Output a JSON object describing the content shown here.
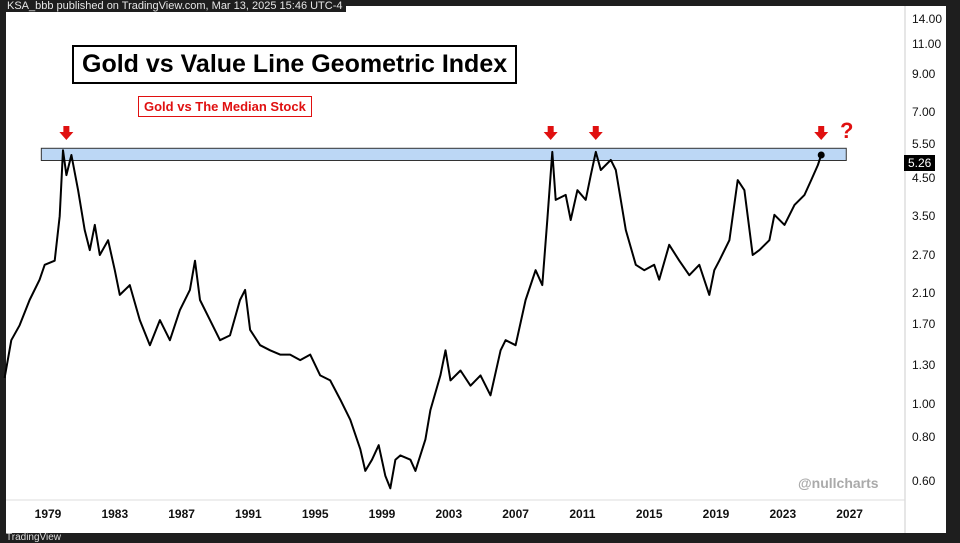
{
  "header": "KSA_bbb published on TradingView.com, Mar 13, 2025 15:46 UTC-4",
  "footer": "TradingView",
  "watermark": "@nullcharts",
  "annotation_question": "?",
  "chart_data": {
    "type": "line",
    "title": "Gold vs Value Line Geometric Index",
    "subtitle": "Gold vs The Median Stock",
    "scale": "log",
    "ylim": [
      0.57,
      14.5
    ],
    "xlim": [
      1976.3,
      2031.5
    ],
    "y_ticks": [
      "14.00",
      "11.00",
      "9.00",
      "7.00",
      "5.50",
      "4.50",
      "3.50",
      "2.70",
      "2.10",
      "1.70",
      "1.30",
      "1.00",
      "0.80",
      "0.60"
    ],
    "x_ticks": [
      "1979",
      "1983",
      "1987",
      "1991",
      "1995",
      "1999",
      "2003",
      "2007",
      "2011",
      "2015",
      "2019",
      "2023",
      "2027"
    ],
    "last_value": "5.26",
    "resistance_band": {
      "low": 5.07,
      "high": 5.5,
      "from": 1978.6,
      "to": 2026.8,
      "color": "#bcd7f5"
    },
    "peak_arrows": [
      1980.1,
      2009.1,
      2011.8,
      2025.3
    ],
    "line_color": "#000000",
    "accent_color": "#e01010",
    "points": [
      [
        1976.4,
        1.19
      ],
      [
        1976.8,
        1.53
      ],
      [
        1977.3,
        1.69
      ],
      [
        1977.9,
        2.0
      ],
      [
        1978.5,
        2.29
      ],
      [
        1978.8,
        2.53
      ],
      [
        1979.4,
        2.6
      ],
      [
        1979.7,
        3.5
      ],
      [
        1979.9,
        5.43
      ],
      [
        1980.1,
        4.6
      ],
      [
        1980.4,
        5.26
      ],
      [
        1980.8,
        4.16
      ],
      [
        1981.2,
        3.19
      ],
      [
        1981.5,
        2.79
      ],
      [
        1981.8,
        3.3
      ],
      [
        1982.1,
        2.7
      ],
      [
        1982.6,
        2.98
      ],
      [
        1983.0,
        2.44
      ],
      [
        1983.3,
        2.07
      ],
      [
        1983.9,
        2.21
      ],
      [
        1984.5,
        1.75
      ],
      [
        1985.1,
        1.48
      ],
      [
        1985.7,
        1.75
      ],
      [
        1986.3,
        1.53
      ],
      [
        1986.9,
        1.87
      ],
      [
        1987.5,
        2.14
      ],
      [
        1987.8,
        2.6
      ],
      [
        1988.1,
        2.0
      ],
      [
        1988.7,
        1.75
      ],
      [
        1989.3,
        1.53
      ],
      [
        1989.9,
        1.58
      ],
      [
        1990.5,
        2.0
      ],
      [
        1990.8,
        2.14
      ],
      [
        1991.1,
        1.64
      ],
      [
        1991.7,
        1.48
      ],
      [
        1992.3,
        1.43
      ],
      [
        1992.9,
        1.39
      ],
      [
        1993.5,
        1.39
      ],
      [
        1994.1,
        1.34
      ],
      [
        1994.7,
        1.39
      ],
      [
        1995.3,
        1.21
      ],
      [
        1995.9,
        1.17
      ],
      [
        1996.5,
        1.03
      ],
      [
        1997.1,
        0.9
      ],
      [
        1997.7,
        0.74
      ],
      [
        1998.0,
        0.64
      ],
      [
        1998.4,
        0.69
      ],
      [
        1998.8,
        0.76
      ],
      [
        1999.2,
        0.62
      ],
      [
        1999.5,
        0.57
      ],
      [
        1999.8,
        0.69
      ],
      [
        2000.1,
        0.71
      ],
      [
        2000.7,
        0.69
      ],
      [
        2001.0,
        0.64
      ],
      [
        2001.6,
        0.79
      ],
      [
        2001.9,
        0.96
      ],
      [
        2002.5,
        1.21
      ],
      [
        2002.8,
        1.43
      ],
      [
        2003.1,
        1.17
      ],
      [
        2003.7,
        1.25
      ],
      [
        2004.3,
        1.13
      ],
      [
        2004.9,
        1.21
      ],
      [
        2005.5,
        1.06
      ],
      [
        2006.1,
        1.43
      ],
      [
        2006.4,
        1.53
      ],
      [
        2007.0,
        1.48
      ],
      [
        2007.6,
        2.0
      ],
      [
        2008.2,
        2.44
      ],
      [
        2008.6,
        2.21
      ],
      [
        2008.9,
        3.41
      ],
      [
        2009.2,
        5.37
      ],
      [
        2009.4,
        3.9
      ],
      [
        2010.0,
        4.03
      ],
      [
        2010.3,
        3.41
      ],
      [
        2010.7,
        4.16
      ],
      [
        2011.2,
        3.9
      ],
      [
        2011.5,
        4.6
      ],
      [
        2011.8,
        5.37
      ],
      [
        2012.1,
        4.76
      ],
      [
        2012.7,
        5.09
      ],
      [
        2013.0,
        4.76
      ],
      [
        2013.6,
        3.19
      ],
      [
        2014.2,
        2.53
      ],
      [
        2014.7,
        2.44
      ],
      [
        2015.3,
        2.53
      ],
      [
        2015.6,
        2.29
      ],
      [
        2016.2,
        2.89
      ],
      [
        2016.8,
        2.6
      ],
      [
        2017.4,
        2.36
      ],
      [
        2018.0,
        2.53
      ],
      [
        2018.6,
        2.07
      ],
      [
        2018.9,
        2.44
      ],
      [
        2019.2,
        2.6
      ],
      [
        2019.8,
        2.98
      ],
      [
        2020.3,
        4.45
      ],
      [
        2020.7,
        4.16
      ],
      [
        2021.2,
        2.7
      ],
      [
        2021.6,
        2.79
      ],
      [
        2022.2,
        2.98
      ],
      [
        2022.5,
        3.53
      ],
      [
        2023.1,
        3.3
      ],
      [
        2023.7,
        3.77
      ],
      [
        2024.3,
        4.03
      ],
      [
        2024.7,
        4.45
      ],
      [
        2025.1,
        4.92
      ],
      [
        2025.3,
        5.26
      ]
    ]
  }
}
